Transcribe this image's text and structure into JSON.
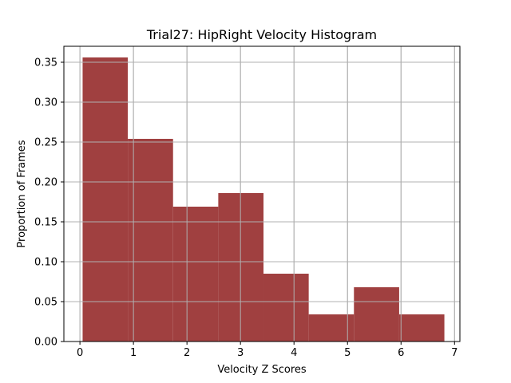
{
  "chart_data": {
    "type": "bar",
    "subtype": "histogram",
    "title": "Trial27: HipRight Velocity Histogram",
    "xlabel": "Velocity Z Scores",
    "ylabel": "Proportion of Frames",
    "xlim": [
      -0.3,
      7.1
    ],
    "ylim": [
      0.0,
      0.37
    ],
    "xticks": [
      0,
      1,
      2,
      3,
      4,
      5,
      6,
      7
    ],
    "xtick_labels": [
      "0",
      "1",
      "2",
      "3",
      "4",
      "5",
      "6",
      "7"
    ],
    "yticks": [
      0.0,
      0.05,
      0.1,
      0.15,
      0.2,
      0.25,
      0.3,
      0.35
    ],
    "ytick_labels": [
      "0.00",
      "0.05",
      "0.10",
      "0.15",
      "0.20",
      "0.25",
      "0.30",
      "0.35"
    ],
    "grid": true,
    "bin_edges": [
      0.05,
      0.895,
      1.74,
      2.585,
      3.43,
      4.275,
      5.12,
      5.965,
      6.81
    ],
    "values": [
      0.356,
      0.254,
      0.169,
      0.186,
      0.085,
      0.034,
      0.068,
      0.034
    ],
    "series": [
      {
        "name": "HipRight Velocity",
        "color": "#a04040"
      }
    ]
  }
}
